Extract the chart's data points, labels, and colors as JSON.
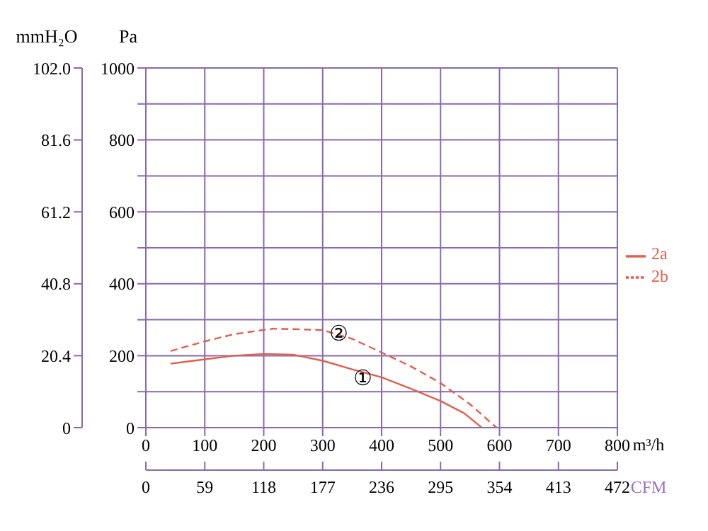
{
  "chart_data": {
    "type": "line",
    "xlabel": "m³/h",
    "ylabel": "Pa",
    "y2label": "mmH₂O",
    "x2label": "CFM",
    "xlim": [
      0,
      800
    ],
    "xticks": [
      0,
      100,
      200,
      300,
      400,
      500,
      600,
      700,
      800
    ],
    "ylim": [
      0,
      1000
    ],
    "yticks": [
      0,
      {
        "value": 100,
        "label": null
      },
      200,
      {
        "value": 300,
        "label": null
      },
      400,
      {
        "value": 500,
        "label": null
      },
      600,
      {
        "value": 700,
        "label": null
      },
      800,
      {
        "value": 900,
        "label": null
      },
      1000
    ],
    "y2lim": [
      0,
      102
    ],
    "y2ticks": [
      0,
      20.4,
      40.8,
      61.2,
      81.6,
      {
        "value": 102,
        "label": "102.0"
      }
    ],
    "x2lim": [
      0,
      472
    ],
    "x2ticks": [
      0,
      59,
      118,
      177,
      236,
      295,
      354,
      413,
      472
    ],
    "grid": true,
    "legend": "right",
    "marker": "none",
    "series": [
      {
        "name": "2a",
        "color": "#e0604c",
        "line_style": "solid",
        "x": [
          42,
          100,
          150,
          200,
          250,
          300,
          350,
          400,
          450,
          500,
          540,
          570
        ],
        "values": [
          178,
          190,
          200,
          205,
          203,
          186,
          162,
          140,
          108,
          74,
          40,
          0
        ]
      },
      {
        "name": "2b",
        "color": "#e0604c",
        "line_style": "dashed",
        "x": [
          42,
          100,
          150,
          215,
          250,
          300,
          350,
          400,
          450,
          500,
          550,
          595
        ],
        "values": [
          213,
          240,
          260,
          275,
          274,
          271,
          247,
          209,
          170,
          124,
          65,
          0
        ]
      }
    ],
    "annotations": [
      {
        "text": "①",
        "x": 368,
        "y": 140
      },
      {
        "text": "②",
        "x": 327,
        "y": 264
      }
    ]
  }
}
